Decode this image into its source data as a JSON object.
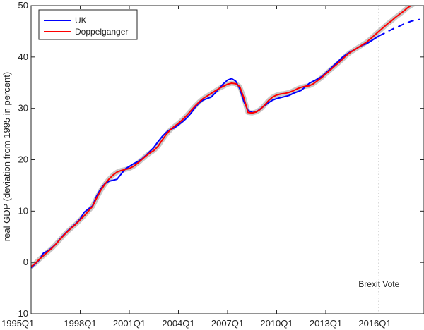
{
  "chart_data": {
    "type": "line",
    "title": "",
    "xlabel": "",
    "ylabel": "real GDP (deviation from 1995 in percent)",
    "x_tick_labels": [
      "1995Q1",
      "1998Q1",
      "2001Q1",
      "2004Q1",
      "2007Q1",
      "2010Q1",
      "2013Q1",
      "2016Q1"
    ],
    "xlim": [
      "1995Q1",
      "2018Q4"
    ],
    "ylim": [
      -10,
      50
    ],
    "y_ticks": [
      -10,
      0,
      10,
      20,
      30,
      40,
      50
    ],
    "grid": false,
    "legend_position": "top-left",
    "x": [
      "1995Q1",
      "1995Q2",
      "1995Q3",
      "1995Q4",
      "1996Q1",
      "1996Q2",
      "1996Q3",
      "1996Q4",
      "1997Q1",
      "1997Q2",
      "1997Q3",
      "1997Q4",
      "1998Q1",
      "1998Q2",
      "1998Q3",
      "1998Q4",
      "1999Q1",
      "1999Q2",
      "1999Q3",
      "1999Q4",
      "2000Q1",
      "2000Q2",
      "2000Q3",
      "2000Q4",
      "2001Q1",
      "2001Q2",
      "2001Q3",
      "2001Q4",
      "2002Q1",
      "2002Q2",
      "2002Q3",
      "2002Q4",
      "2003Q1",
      "2003Q2",
      "2003Q3",
      "2003Q4",
      "2004Q1",
      "2004Q2",
      "2004Q3",
      "2004Q4",
      "2005Q1",
      "2005Q2",
      "2005Q3",
      "2005Q4",
      "2006Q1",
      "2006Q2",
      "2006Q3",
      "2006Q4",
      "2007Q1",
      "2007Q2",
      "2007Q3",
      "2007Q4",
      "2008Q1",
      "2008Q2",
      "2008Q3",
      "2008Q4",
      "2009Q1",
      "2009Q2",
      "2009Q3",
      "2009Q4",
      "2010Q1",
      "2010Q2",
      "2010Q3",
      "2010Q4",
      "2011Q1",
      "2011Q2",
      "2011Q3",
      "2011Q4",
      "2012Q1",
      "2012Q2",
      "2012Q3",
      "2012Q4",
      "2013Q1",
      "2013Q2",
      "2013Q3",
      "2013Q4",
      "2014Q1",
      "2014Q2",
      "2014Q3",
      "2014Q4",
      "2015Q1",
      "2015Q2",
      "2015Q3",
      "2015Q4",
      "2016Q1",
      "2016Q2",
      "2016Q3",
      "2016Q4",
      "2017Q1",
      "2017Q2",
      "2017Q3",
      "2017Q4",
      "2018Q1",
      "2018Q2",
      "2018Q3",
      "2018Q4"
    ],
    "series": [
      {
        "name": "UK",
        "color": "#0000ff",
        "line_style": "solid-then-dashed-after-2016Q2",
        "values": [
          -1.0,
          -0.3,
          0.5,
          1.8,
          2.2,
          2.8,
          3.5,
          4.5,
          5.4,
          6.2,
          6.9,
          7.6,
          8.5,
          9.8,
          10.4,
          11.0,
          12.9,
          14.3,
          15.3,
          15.8,
          16.0,
          16.2,
          17.2,
          18.2,
          18.7,
          19.2,
          19.6,
          20.1,
          20.8,
          21.6,
          22.4,
          23.5,
          24.5,
          25.3,
          25.9,
          26.2,
          26.8,
          27.4,
          28.1,
          29.0,
          30.1,
          31.0,
          31.6,
          31.9,
          32.2,
          33.0,
          33.9,
          34.8,
          35.5,
          35.8,
          35.3,
          33.8,
          31.3,
          29.6,
          29.2,
          29.3,
          29.9,
          30.5,
          31.1,
          31.6,
          31.9,
          32.1,
          32.3,
          32.5,
          32.9,
          33.2,
          33.5,
          34.2,
          34.9,
          35.3,
          35.7,
          36.2,
          36.9,
          37.6,
          38.4,
          39.1,
          39.9,
          40.5,
          41.0,
          41.4,
          41.9,
          42.3,
          42.6,
          43.1,
          43.6,
          44.1,
          44.5,
          44.9,
          45.3,
          45.7,
          46.0,
          46.4,
          46.7,
          47.0,
          47.2,
          47.3
        ]
      },
      {
        "name": "Doppelganger",
        "color": "#ff0000",
        "line_style": "solid",
        "values": [
          -0.8,
          -0.2,
          0.6,
          1.3,
          2.0,
          2.7,
          3.5,
          4.4,
          5.3,
          6.1,
          6.8,
          7.5,
          8.3,
          9.1,
          10.0,
          10.9,
          12.5,
          14.0,
          15.2,
          16.2,
          17.0,
          17.6,
          17.9,
          18.1,
          18.3,
          18.7,
          19.3,
          20.0,
          20.7,
          21.3,
          21.8,
          22.6,
          23.8,
          24.9,
          25.8,
          26.5,
          27.1,
          27.8,
          28.6,
          29.5,
          30.4,
          31.2,
          31.9,
          32.4,
          32.9,
          33.4,
          33.9,
          34.3,
          34.7,
          34.9,
          34.8,
          34.2,
          32.0,
          29.2,
          29.1,
          29.3,
          29.8,
          30.6,
          31.5,
          32.2,
          32.6,
          32.8,
          32.9,
          33.1,
          33.4,
          33.8,
          34.1,
          34.3,
          34.4,
          34.8,
          35.4,
          36.0,
          36.7,
          37.4,
          38.1,
          38.8,
          39.5,
          40.3,
          40.9,
          41.4,
          41.9,
          42.4,
          42.9,
          43.6,
          44.3,
          45.0,
          45.7,
          46.4,
          47.0,
          47.7,
          48.3,
          48.9,
          49.6,
          50.1,
          50.5,
          50.9
        ]
      }
    ],
    "annotations": [
      {
        "text": "Brexit Vote",
        "x": "2016Q2"
      }
    ]
  }
}
